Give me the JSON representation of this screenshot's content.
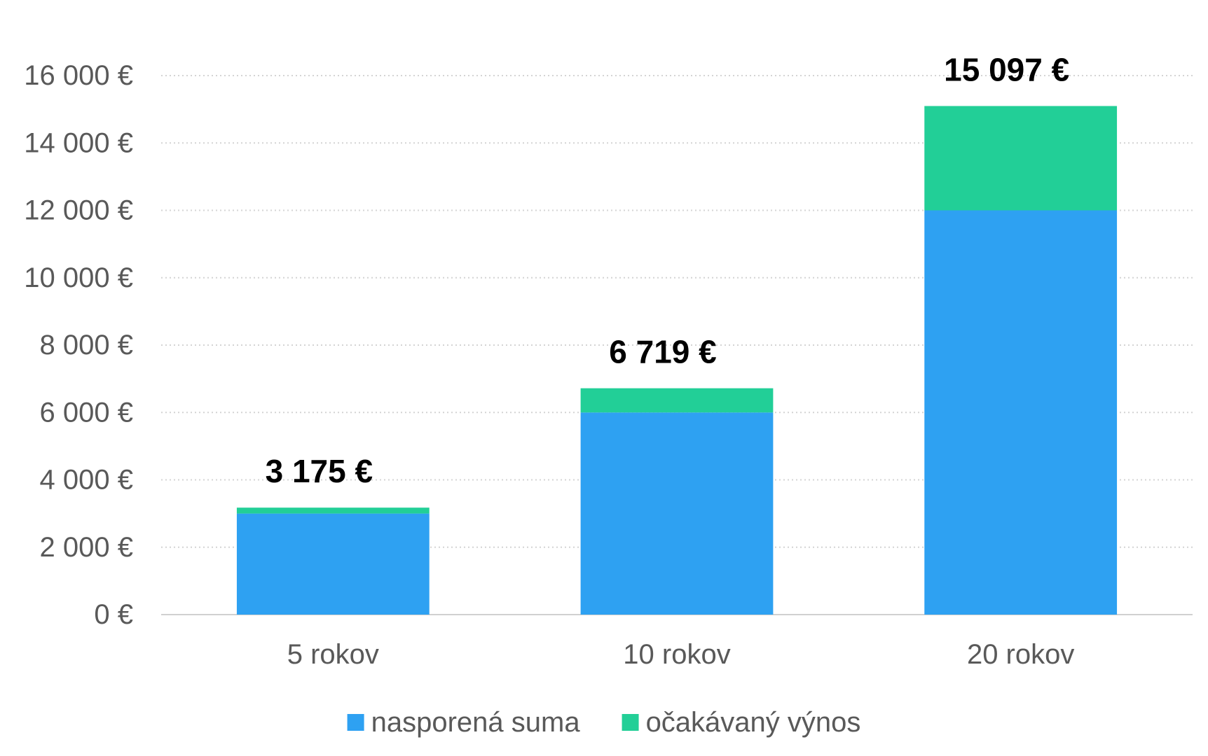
{
  "chart_data": {
    "type": "bar",
    "stacked": true,
    "categories": [
      "5 rokov",
      "10 rokov",
      "20 rokov"
    ],
    "series": [
      {
        "name": "nasporená suma",
        "values": [
          3000,
          6000,
          12000
        ],
        "color": "#2ea1f2"
      },
      {
        "name": "očakávaný výnos",
        "values": [
          175,
          719,
          3097
        ],
        "color": "#22cf97"
      }
    ],
    "totals": [
      3175,
      6719,
      15097
    ],
    "total_labels": [
      "3 175 €",
      "6 719 €",
      "15 097 €"
    ],
    "yticks": [
      0,
      2000,
      4000,
      6000,
      8000,
      10000,
      12000,
      14000,
      16000
    ],
    "ytick_labels": [
      "0 €",
      "2 000 €",
      "4 000 €",
      "6 000 €",
      "8 000 €",
      "10 000 €",
      "12 000 €",
      "14 000 €",
      "16 000 €"
    ],
    "ylim": [
      0,
      16000
    ],
    "grid": true,
    "legend_position": "bottom",
    "title": "",
    "xlabel": "",
    "ylabel": ""
  }
}
